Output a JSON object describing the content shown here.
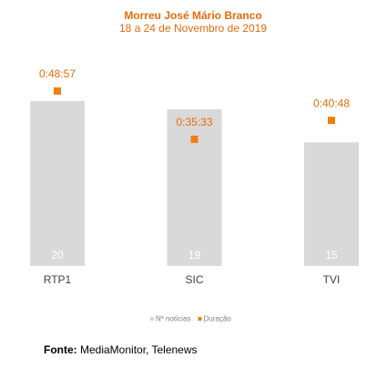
{
  "chart_data": {
    "type": "bar",
    "title": "Morreu José Mário Branco",
    "subtitle": "18 a 24 de Novembro de 2019",
    "categories": [
      "RTP1",
      "SIC",
      "TVI"
    ],
    "series": [
      {
        "name": "Nº notícias",
        "color": "#d9d9d9",
        "values": [
          20,
          19,
          15
        ]
      },
      {
        "name": "Duração",
        "type": "scatter",
        "color": "#f07f09",
        "values": [
          2937,
          2133,
          2448
        ],
        "value_labels": [
          "0:48:57",
          "0:35:33",
          "0:40:48"
        ]
      }
    ],
    "source_label": "Fonte:",
    "source": "MediaMonitor, Telenews"
  }
}
